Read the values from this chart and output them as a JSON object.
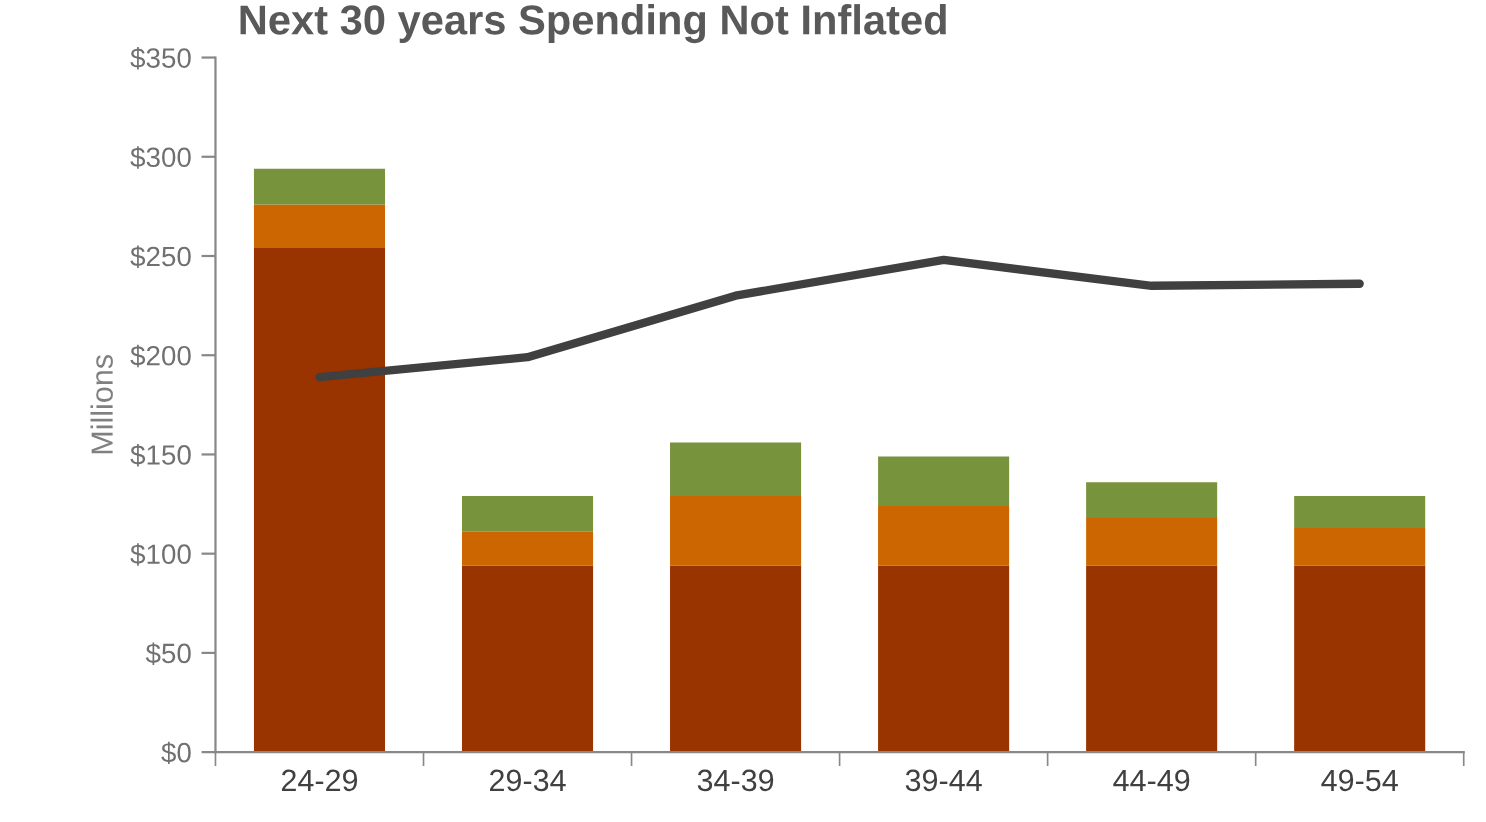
{
  "chart_data": {
    "type": "bar",
    "title": "Next 30 years Spending Not Inflated",
    "ylabel": "Millions",
    "stacked": true,
    "grid": false,
    "categories": [
      "24-29",
      "29-34",
      "34-39",
      "39-44",
      "44-49",
      "49-54"
    ],
    "series": [
      {
        "color": "#993300",
        "values": [
          254,
          94,
          94,
          94,
          94,
          94
        ]
      },
      {
        "color": "#cc6600",
        "values": [
          22,
          17,
          35,
          30,
          24,
          19
        ]
      },
      {
        "color": "#77933c",
        "values": [
          18,
          18,
          27,
          25,
          18,
          16
        ]
      },
      {
        "type": "line",
        "color": "#404040",
        "values": [
          189,
          199,
          230,
          248,
          235,
          236
        ]
      }
    ],
    "ylim": [
      0,
      350
    ],
    "yticks": [
      {
        "value": 0,
        "label": "$0"
      },
      {
        "value": 50,
        "label": "$50"
      },
      {
        "value": 100,
        "label": "$100"
      },
      {
        "value": 150,
        "label": "$150"
      },
      {
        "value": 200,
        "label": "$200"
      },
      {
        "value": 250,
        "label": "$250"
      },
      {
        "value": 300,
        "label": "$300"
      },
      {
        "value": 350,
        "label": "$350"
      }
    ]
  }
}
